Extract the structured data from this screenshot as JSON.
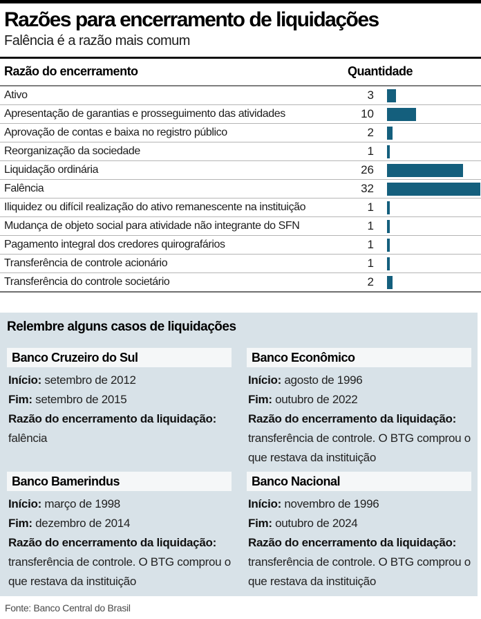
{
  "header": {
    "title": "Razões para encerramento de liquidações",
    "subtitle": "Falência é a razão mais comum"
  },
  "table": {
    "col_reason": "Razão do encerramento",
    "col_qty": "Quantidade"
  },
  "chart_data": {
    "type": "bar",
    "orientation": "horizontal",
    "title": "Razões para encerramento de liquidações",
    "subtitle": "Falência é a razão mais comum",
    "xlabel": "Quantidade",
    "ylabel": "Razão do encerramento",
    "xlim": [
      0,
      32
    ],
    "grid": false,
    "bar_color": "#145F7D",
    "categories": [
      "Ativo",
      "Apresentação de garantias e prosseguimento das atividades",
      "Aprovação de contas e baixa no registro público",
      "Reorganização da sociedade",
      "Liquidação ordinária",
      "Falência",
      "Iliquidez ou difícil realização do ativo remanescente na instituição",
      "Mudança de objeto social para atividade não integrante do SFN",
      "Pagamento integral dos credores quirografários",
      "Transferência de controle acionário",
      "Transferência do controle societário"
    ],
    "values": [
      3,
      10,
      2,
      1,
      26,
      32,
      1,
      1,
      1,
      1,
      2
    ]
  },
  "cases": {
    "title": "Relembre alguns casos de liquidações",
    "cards": [
      {
        "name": "Banco Cruzeiro do Sul",
        "inicio_label": "Início:",
        "inicio_value": "setembro de 2012",
        "fim_label": "Fim:",
        "fim_value": "setembro de 2015",
        "razao_label": "Razão do encerramento da liquidação:",
        "razao_value": "falência"
      },
      {
        "name": "Banco Econômico",
        "inicio_label": "Início:",
        "inicio_value": "agosto de 1996",
        "fim_label": "Fim:",
        "fim_value": "outubro de 2022",
        "razao_label": "Razão do encerramento da liquidação:",
        "razao_value": "transferência de controle. O BTG comprou o que restava da instituição"
      },
      {
        "name": "Banco Bamerindus",
        "inicio_label": "Início:",
        "inicio_value": "março de 1998",
        "fim_label": "Fim:",
        "fim_value": "dezembro de 2014",
        "razao_label": "Razão do encerramento da liquidação:",
        "razao_value": "transferência de controle. O BTG comprou o que restava da instituição"
      },
      {
        "name": "Banco Nacional",
        "inicio_label": "Início:",
        "inicio_value": "novembro de 1996",
        "fim_label": "Fim:",
        "fim_value": "outubro de 2024",
        "razao_label": "Razão do encerramento da liquidação:",
        "razao_value": "transferência de controle. O BTG comprou o que restava da instituição"
      }
    ]
  },
  "footer": {
    "source": "Fonte: Banco Central do Brasil"
  },
  "colors": {
    "accent_bar": "#145F7D",
    "section_bg": "#D8E2E8",
    "card_strip_bg": "#F5F7F8",
    "top_rule": "#000000"
  }
}
